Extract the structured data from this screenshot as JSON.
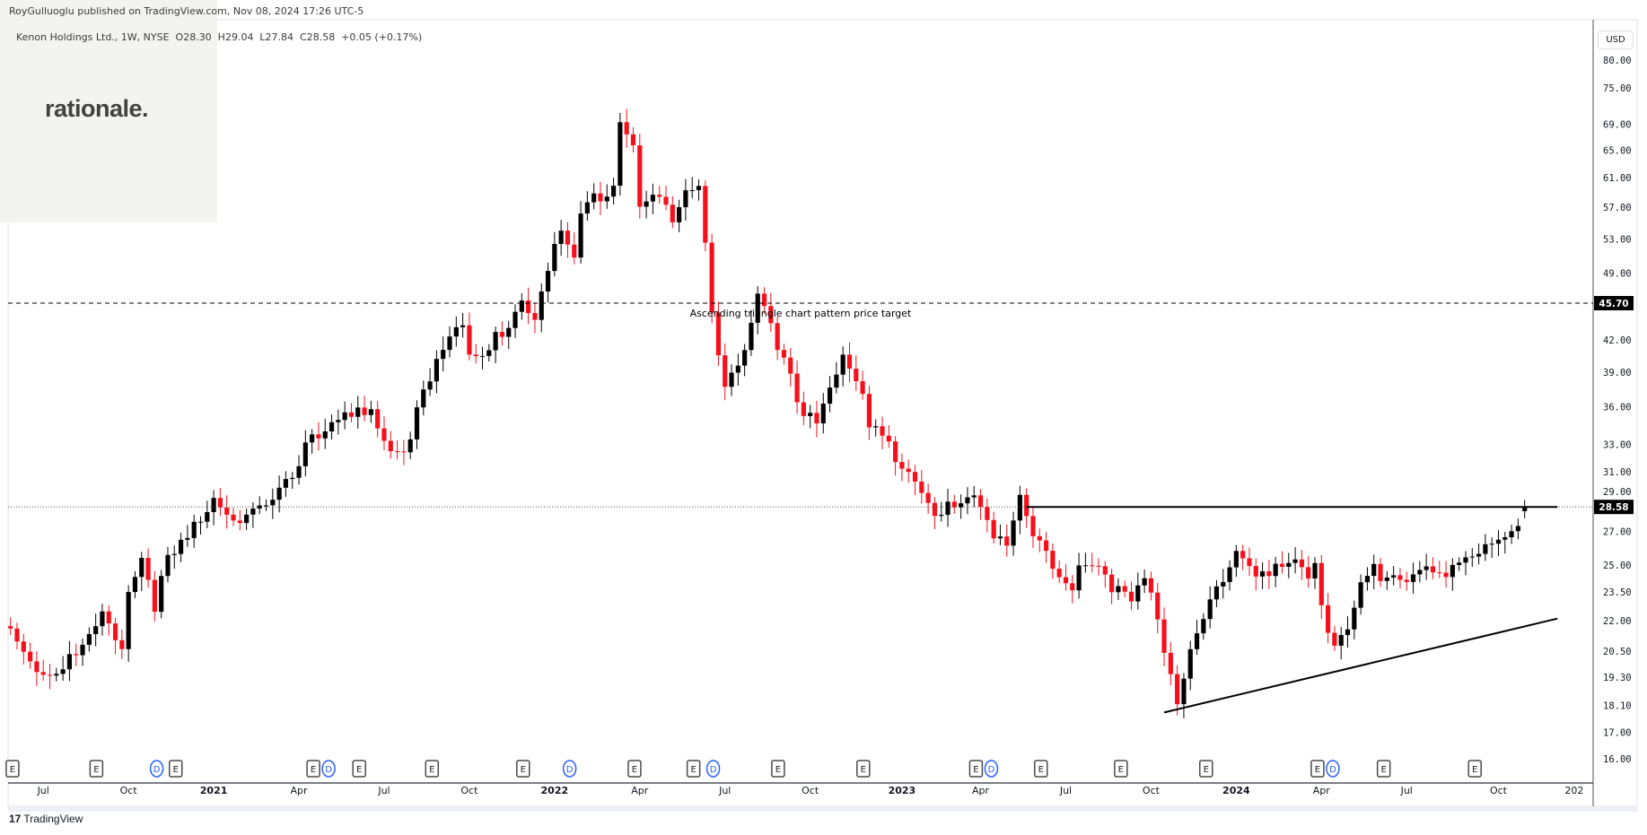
{
  "header": {
    "published": "RoyGulluoglu published on TradingView.com, Nov 08, 2024 17:26 UTC-5",
    "legend": "Kenon Holdings Ltd., 1W, NYSE  O28.30  H29.04  L27.84  C28.58  +0.05 (+0.17%)",
    "watermark": "rationale.",
    "currency": "USD",
    "footer_brand": "TradingView",
    "footer_logo": "17"
  },
  "chart_data": {
    "type": "candlestick",
    "symbol": "Kenon Holdings Ltd.",
    "interval": "1W",
    "exchange": "NYSE",
    "scale": "log",
    "ylim": [
      16,
      80
    ],
    "last_bar": {
      "open": 28.3,
      "high": 29.04,
      "low": 27.84,
      "close": 28.58,
      "change": "+0.05",
      "change_pct": "+0.17%"
    },
    "y_ticks": [
      "80.00",
      "75.00",
      "69.00",
      "65.00",
      "61.00",
      "57.00",
      "53.00",
      "49.00",
      "42.00",
      "39.00",
      "36.00",
      "33.00",
      "31.00",
      "29.00",
      "27.00",
      "25.00",
      "23.50",
      "22.00",
      "20.50",
      "19.30",
      "18.10",
      "17.00",
      "16.00"
    ],
    "y_tick_values": [
      80,
      75,
      69,
      65,
      61,
      57,
      53,
      49,
      42,
      39,
      36,
      33,
      31,
      29,
      27,
      25,
      23.5,
      22,
      20.5,
      19.3,
      18.1,
      17,
      16
    ],
    "x_ticks": [
      {
        "label": "Jul",
        "week": 5
      },
      {
        "label": "Oct",
        "week": 18
      },
      {
        "label": "2021",
        "week": 31,
        "bold": true
      },
      {
        "label": "Apr",
        "week": 44
      },
      {
        "label": "Jul",
        "week": 57
      },
      {
        "label": "Oct",
        "week": 70
      },
      {
        "label": "2022",
        "week": 83,
        "bold": true
      },
      {
        "label": "Apr",
        "week": 96
      },
      {
        "label": "Jul",
        "week": 109
      },
      {
        "label": "Oct",
        "week": 122
      },
      {
        "label": "2023",
        "week": 136,
        "bold": true
      },
      {
        "label": "Apr",
        "week": 148
      },
      {
        "label": "Jul",
        "week": 161
      },
      {
        "label": "Oct",
        "week": 174
      },
      {
        "label": "2024",
        "week": 187,
        "bold": true
      },
      {
        "label": "Apr",
        "week": 200
      },
      {
        "label": "Jul",
        "week": 213
      },
      {
        "label": "Oct",
        "week": 227
      },
      {
        "label": "202",
        "week": 240
      }
    ],
    "close_keypoints_week_price": [
      [
        0,
        21.5
      ],
      [
        5,
        19.5
      ],
      [
        6,
        19.5
      ],
      [
        11,
        20.5
      ],
      [
        14,
        22
      ],
      [
        17,
        21
      ],
      [
        18,
        23.5
      ],
      [
        20,
        25.5
      ],
      [
        22,
        23
      ],
      [
        24,
        25
      ],
      [
        26,
        26
      ],
      [
        30,
        28
      ],
      [
        31,
        29.5
      ],
      [
        34,
        28
      ],
      [
        37,
        28.5
      ],
      [
        40,
        28.5
      ],
      [
        42,
        30
      ],
      [
        44,
        31
      ],
      [
        46,
        34
      ],
      [
        50,
        35
      ],
      [
        51,
        36
      ],
      [
        55,
        35
      ],
      [
        58,
        32
      ],
      [
        60,
        32
      ],
      [
        62,
        36
      ],
      [
        64,
        39
      ],
      [
        66,
        42
      ],
      [
        69,
        43
      ],
      [
        70,
        40
      ],
      [
        72,
        40
      ],
      [
        74,
        42
      ],
      [
        75,
        43
      ],
      [
        78,
        46
      ],
      [
        80,
        45
      ],
      [
        82,
        50
      ],
      [
        84,
        53
      ],
      [
        86,
        50
      ],
      [
        87,
        56
      ],
      [
        90,
        59
      ],
      [
        92,
        60
      ],
      [
        93,
        70
      ],
      [
        95,
        66
      ],
      [
        96,
        58
      ],
      [
        99,
        58
      ],
      [
        101,
        55
      ],
      [
        103,
        58
      ],
      [
        105,
        60
      ],
      [
        106,
        53
      ],
      [
        107,
        45
      ],
      [
        109,
        38
      ],
      [
        111,
        40
      ],
      [
        113,
        43
      ],
      [
        114,
        46
      ],
      [
        117,
        41
      ],
      [
        119,
        38
      ],
      [
        121,
        36
      ],
      [
        123,
        35
      ],
      [
        125,
        38
      ],
      [
        127,
        40
      ],
      [
        130,
        37
      ],
      [
        131,
        34
      ],
      [
        134,
        33
      ],
      [
        136,
        32
      ],
      [
        139,
        30
      ],
      [
        142,
        28
      ],
      [
        144,
        28.5
      ],
      [
        147,
        29
      ],
      [
        150,
        27
      ],
      [
        152,
        26.5
      ],
      [
        154,
        30
      ],
      [
        155,
        28
      ],
      [
        158,
        25.5
      ],
      [
        160,
        24
      ],
      [
        162,
        23.5
      ],
      [
        164,
        25.5
      ],
      [
        166,
        25
      ],
      [
        168,
        24
      ],
      [
        171,
        23.5
      ],
      [
        173,
        24
      ],
      [
        175,
        22
      ],
      [
        176,
        20
      ],
      [
        178,
        18
      ],
      [
        179,
        19.5
      ],
      [
        180,
        21
      ],
      [
        182,
        22.5
      ],
      [
        184,
        24
      ],
      [
        187,
        25.5
      ],
      [
        189,
        24.5
      ],
      [
        192,
        24
      ],
      [
        194,
        25
      ],
      [
        196,
        25.5
      ],
      [
        198,
        24.5
      ],
      [
        199,
        25.5
      ],
      [
        200,
        23
      ],
      [
        202,
        20.3
      ],
      [
        204,
        21.5
      ],
      [
        206,
        23.5
      ],
      [
        208,
        24.5
      ],
      [
        211,
        25
      ],
      [
        213,
        24.5
      ],
      [
        215,
        25
      ],
      [
        218,
        24
      ],
      [
        220,
        24.5
      ],
      [
        223,
        25
      ],
      [
        225,
        26.5
      ],
      [
        228,
        27
      ],
      [
        229,
        27.2
      ],
      [
        231,
        28.58
      ]
    ],
    "annotations": {
      "target_price": 45.7,
      "target_label": "45.70",
      "target_text": "Ascending triangle chart pattern price target",
      "current_label": "28.58",
      "resistance": {
        "price": 28.58,
        "from_week": 155,
        "to_week": 236
      },
      "trendline": {
        "from_week": 176,
        "from_price": 17.8,
        "to_week": 236,
        "to_price": 22.1
      }
    },
    "events": [
      {
        "type": "E",
        "week": 0.3
      },
      {
        "type": "E",
        "week": 13.1
      },
      {
        "type": "D",
        "week": 22.3
      },
      {
        "type": "E",
        "week": 25.2
      },
      {
        "type": "D",
        "week": 46.9
      },
      {
        "type": "E",
        "week": 46.2
      },
      {
        "type": "E",
        "week": 53.2
      },
      {
        "type": "E",
        "week": 64.3
      },
      {
        "type": "E",
        "week": 78.2
      },
      {
        "type": "D",
        "week": 85.3
      },
      {
        "type": "E",
        "week": 95.2
      },
      {
        "type": "E",
        "week": 104.2
      },
      {
        "type": "D",
        "week": 107.2
      },
      {
        "type": "E",
        "week": 117.1
      },
      {
        "type": "E",
        "week": 130.1
      },
      {
        "type": "D",
        "week": 148
      },
      {
        "type": "E",
        "week": 147.3
      },
      {
        "type": "E",
        "week": 157.2
      },
      {
        "type": "E",
        "week": 169.4
      },
      {
        "type": "E",
        "week": 182.4
      },
      {
        "type": "D",
        "week": 200.1
      },
      {
        "type": "E",
        "week": 199.4
      },
      {
        "type": "E",
        "week": 209.5
      },
      {
        "type": "E",
        "week": 223.4
      }
    ],
    "colors": {
      "up": "#000000",
      "down": "#f7101c",
      "dividend": "#2962ff",
      "text": "#131722",
      "axis": "#50535e"
    }
  }
}
